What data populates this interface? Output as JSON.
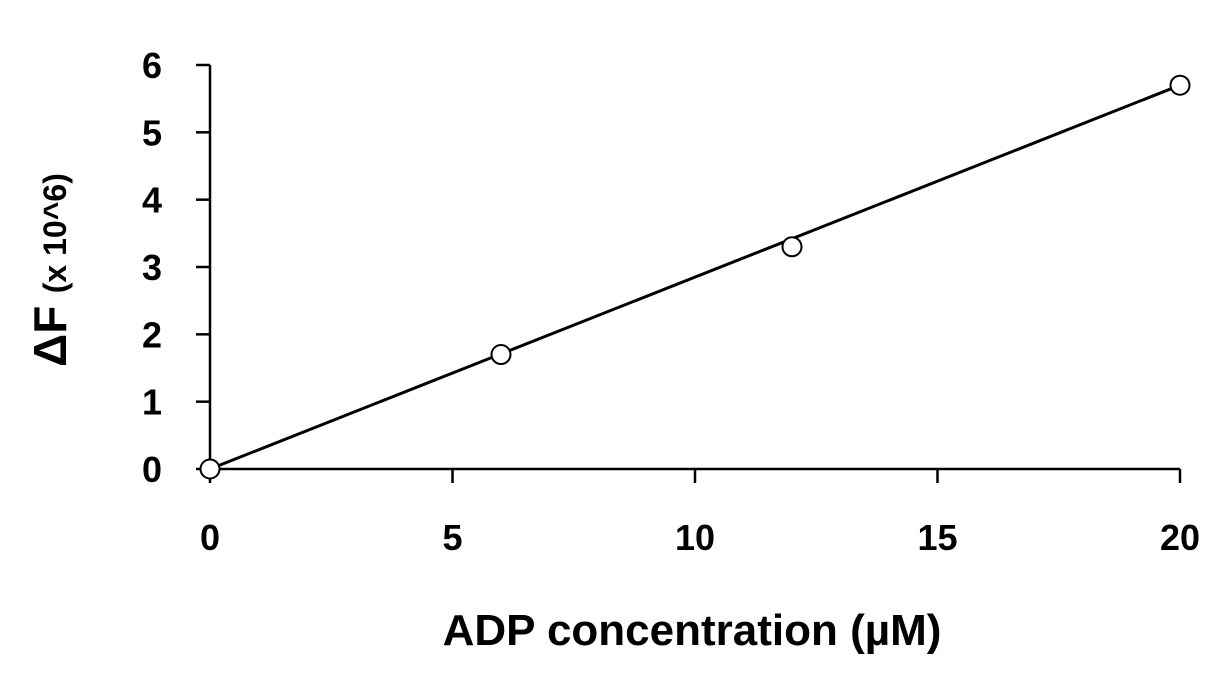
{
  "chart_data": {
    "type": "scatter",
    "title": "",
    "xlabel": "ADP concentration (µM)",
    "ylabel_main": "ΔF",
    "ylabel_unit": "(x 10^6)",
    "xlim": [
      0,
      20
    ],
    "ylim": [
      0,
      6
    ],
    "xticks": [
      0,
      5,
      10,
      15,
      20
    ],
    "yticks": [
      0,
      1,
      2,
      3,
      4,
      5,
      6
    ],
    "grid": false,
    "legend": "none",
    "series": [
      {
        "x": [
          0,
          6,
          12,
          20
        ],
        "y": [
          0,
          1.7,
          3.3,
          5.7
        ],
        "marker": "open-circle"
      }
    ],
    "fit_line": {
      "x": [
        0,
        20
      ],
      "y": [
        0,
        5.7
      ]
    },
    "colors": {
      "line": "#000000",
      "marker_fill": "#ffffff",
      "marker_stroke": "#000000"
    }
  }
}
